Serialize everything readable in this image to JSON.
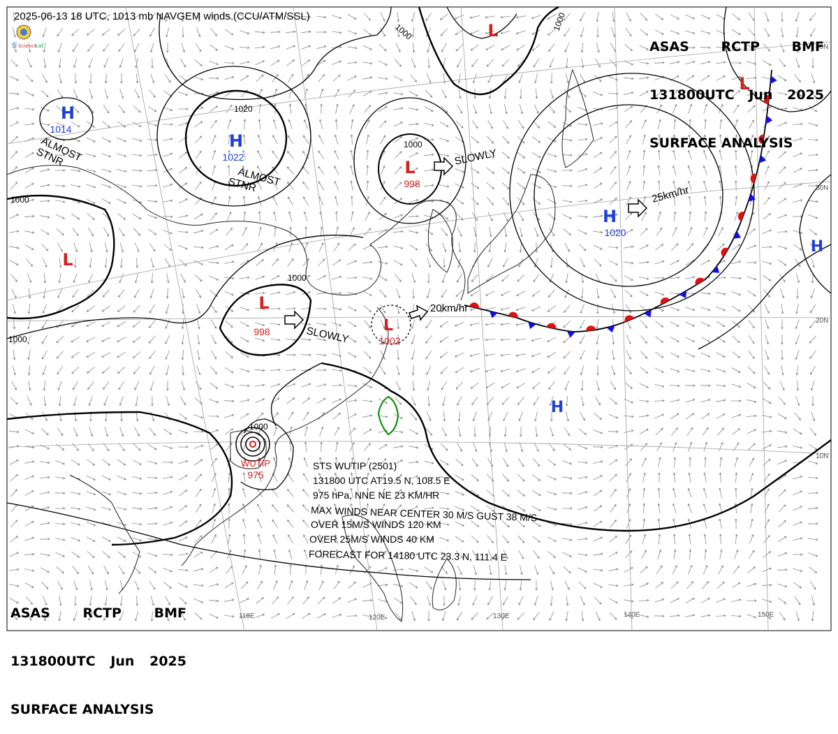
{
  "top_caption": "2025-06-13 18 UTC, 1013 mb NAVGEM winds (CCU/ATM/SSL)",
  "logo": {
    "text": "SSL"
  },
  "header_top_right": {
    "line1_a": "ASAS",
    "line1_b": "RCTP",
    "line1_c": "BMF",
    "line2_a": "131800UTC",
    "line2_b": "Jun",
    "line2_c": "2025",
    "line3": "SURFACE ANALYSIS"
  },
  "header_bottom_left": {
    "line1_a": "ASAS",
    "line1_b": "RCTP",
    "line1_c": "BMF",
    "line2_a": "131800UTC",
    "line2_b": "Jun",
    "line2_c": "2025",
    "line3": "SURFACE ANALYSIS"
  },
  "pressure_systems": [
    {
      "id": "H1",
      "type": "H",
      "value": "1014",
      "color": "#1f3fd6"
    },
    {
      "id": "H2",
      "type": "H",
      "value": "1022",
      "color": "#1f3fd6"
    },
    {
      "id": "L1",
      "type": "L",
      "value": "998",
      "color": "#d42020"
    },
    {
      "id": "L2",
      "type": "L",
      "value": "",
      "color": "#d42020"
    },
    {
      "id": "L3",
      "type": "L",
      "value": "998",
      "color": "#d42020"
    },
    {
      "id": "L4",
      "type": "L",
      "value": "1002",
      "color": "#d42020"
    },
    {
      "id": "L5",
      "type": "L",
      "value": "",
      "color": "#d42020"
    },
    {
      "id": "L6",
      "type": "L",
      "value": "",
      "color": "#d42020"
    },
    {
      "id": "H3",
      "type": "H",
      "value": "1020",
      "color": "#1f3fd6"
    },
    {
      "id": "H4",
      "type": "H",
      "value": "",
      "color": "#1f3fd6"
    },
    {
      "id": "H5",
      "type": "H",
      "value": "",
      "color": "#1f3fd6"
    }
  ],
  "isobar_labels": [
    "1000",
    "1000",
    "1000",
    "1000",
    "1000",
    "1000",
    "1020",
    "1000"
  ],
  "motion_labels": {
    "almost_stnr_1": "ALMOST\nSTNR",
    "almost_stnr_2": "ALMOST\nSTNR",
    "slowly_1": "SLOWLY",
    "slowly_2": "SLOWLY",
    "speed_high": "25km/hr",
    "speed_low": "20km/hr"
  },
  "typhoon": {
    "name": "WUTIP",
    "pressure": "975",
    "color": "#d42020"
  },
  "storm_bulletin": [
    "STS  WUTIP  (2501)",
    "131800 UTC  AT19.5 N, 108.5 E",
    "975 hPa, NNE  NE  23 KM/HR",
    "MAX WINDS NEAR CENTER 30 M/S GUST 38 M/S",
    "OVER 15M/S WINDS 120 KM",
    "OVER 25M/S WINDS 40 KM",
    "FORECAST FOR  14180  UTC 23.3 N, 111.4 E"
  ],
  "lat_labels": [
    "40N",
    "30N",
    "20N",
    "10N"
  ],
  "lon_labels": [
    "110E",
    "120E",
    "130E",
    "140E",
    "150E"
  ],
  "colors": {
    "warm_front": "#e01010",
    "cold_front": "#1010e0",
    "taiwan": "#109010",
    "isobar": "#000000",
    "wind": "#7a7a7a",
    "grid": "#9a9a9a"
  }
}
